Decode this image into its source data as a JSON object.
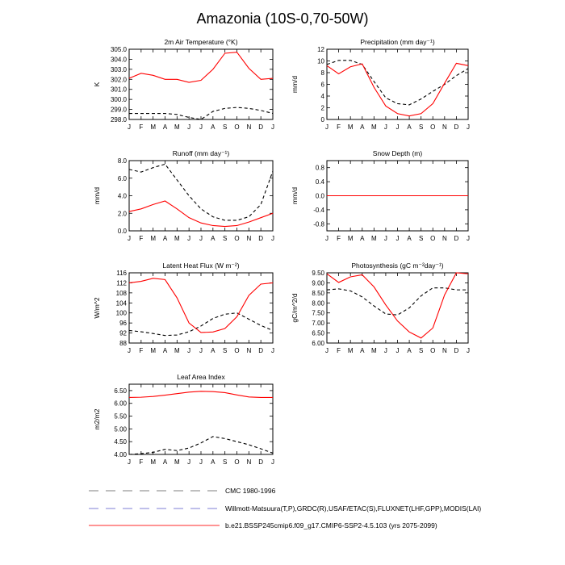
{
  "figure": {
    "title": "Amazonia (10S-0,70-50W)"
  },
  "months": [
    "J",
    "F",
    "M",
    "A",
    "M",
    "J",
    "J",
    "A",
    "S",
    "O",
    "N",
    "D",
    "J"
  ],
  "legend": [
    {
      "label": "CMC 1980-1996",
      "color": "#999999",
      "dash": "long"
    },
    {
      "label": "Willmott-Matsuura(T,P),GRDC(R),USAF/ETAC(S),FLUXNET(LHF,GPP),MODIS(LAI)",
      "color": "#9999dd",
      "dash": "long"
    },
    {
      "label": "b.e21.BSSP245cmip6.f09_g17.CMIP6-SSP2-4.5.103 (yrs 2075-2099)",
      "color": "#ff5555",
      "dash": "solid"
    }
  ],
  "chart_data": [
    {
      "type": "line",
      "title": "2m Air Temperature (°K)",
      "ylabel": "K",
      "ylim": [
        298.0,
        305.0
      ],
      "yticks": [
        "305.0",
        "304.0",
        "303.0",
        "302.0",
        "301.0",
        "300.0",
        "299.0",
        "298.0"
      ],
      "yticks_values": [
        305,
        304,
        303,
        302,
        301,
        300,
        299,
        298
      ],
      "series": [
        {
          "color": "#ff0000",
          "style": "solid",
          "values": [
            302.1,
            302.6,
            302.4,
            302.0,
            302.0,
            301.7,
            301.9,
            303.0,
            304.6,
            304.7,
            303.1,
            302.0,
            302.1
          ]
        },
        {
          "color": "#000000",
          "style": "dashed",
          "values": [
            298.6,
            298.6,
            298.6,
            298.6,
            298.5,
            298.2,
            298.0,
            298.8,
            299.1,
            299.2,
            299.1,
            298.9,
            298.6
          ]
        }
      ]
    },
    {
      "type": "line",
      "title": "Precipitation (mm day⁻¹)",
      "ylabel": "mm/d",
      "ylim": [
        0,
        12
      ],
      "yticks": [
        "12",
        "10",
        "8",
        "6",
        "4",
        "2",
        "0"
      ],
      "yticks_values": [
        12,
        10,
        8,
        6,
        4,
        2,
        0
      ],
      "series": [
        {
          "color": "#ff0000",
          "style": "solid",
          "values": [
            9.2,
            7.8,
            9.0,
            9.5,
            5.5,
            2.3,
            1.0,
            0.6,
            1.0,
            2.7,
            6.2,
            9.6,
            9.2
          ]
        },
        {
          "color": "#000000",
          "style": "dashed",
          "values": [
            9.4,
            10.1,
            10.1,
            9.4,
            6.5,
            3.7,
            2.7,
            2.5,
            3.5,
            4.8,
            6.0,
            7.5,
            8.7
          ]
        }
      ]
    },
    {
      "type": "line",
      "title": "Runoff (mm day⁻¹)",
      "ylabel": "mm/d",
      "ylim": [
        0,
        8
      ],
      "yticks": [
        "8.0",
        "6.0",
        "4.0",
        "2.0",
        "0.0"
      ],
      "yticks_values": [
        8,
        6,
        4,
        2,
        0
      ],
      "series": [
        {
          "color": "#ff0000",
          "style": "solid",
          "values": [
            2.2,
            2.5,
            3.0,
            3.4,
            2.5,
            1.5,
            0.9,
            0.6,
            0.5,
            0.6,
            1.0,
            1.5,
            2.0
          ]
        },
        {
          "color": "#000000",
          "style": "dashed",
          "values": [
            7.0,
            6.7,
            7.2,
            7.6,
            5.8,
            4.0,
            2.5,
            1.6,
            1.2,
            1.2,
            1.6,
            3.0,
            6.8
          ]
        }
      ]
    },
    {
      "type": "line",
      "title": "Snow Depth (m)",
      "ylabel": "mm/d",
      "ylim": [
        -1.0,
        1.0
      ],
      "yticks": [
        "0.8",
        "0.4",
        "0.0",
        "-0.4",
        "-0.8"
      ],
      "yticks_values": [
        0.8,
        0.4,
        0.0,
        -0.4,
        -0.8
      ],
      "series": [
        {
          "color": "#ff0000",
          "style": "solid",
          "values": [
            0,
            0,
            0,
            0,
            0,
            0,
            0,
            0,
            0,
            0,
            0,
            0,
            0
          ]
        },
        {
          "color": "#000000",
          "style": "dashed",
          "values": [
            0,
            0,
            0,
            0,
            0,
            0,
            0,
            0,
            0,
            0,
            0,
            0,
            0
          ]
        }
      ]
    },
    {
      "type": "line",
      "title": "Latent Heat Flux (W m⁻²)",
      "ylabel": "W/m^2",
      "ylim": [
        88,
        116
      ],
      "yticks": [
        "116",
        "112",
        "108",
        "104",
        "100",
        "96",
        "92",
        "88"
      ],
      "yticks_values": [
        116,
        112,
        108,
        104,
        100,
        96,
        92,
        88
      ],
      "series": [
        {
          "color": "#ff0000",
          "style": "solid",
          "values": [
            112.0,
            112.6,
            113.8,
            113.3,
            106.0,
            96.0,
            92.2,
            92.4,
            93.8,
            98.5,
            107.0,
            111.5,
            112.0
          ]
        },
        {
          "color": "#000000",
          "style": "dashed",
          "values": [
            93.0,
            92.5,
            91.8,
            91.0,
            91.2,
            92.5,
            94.8,
            97.8,
            99.5,
            100.0,
            97.5,
            95.0,
            93.0
          ]
        }
      ]
    },
    {
      "type": "line",
      "title": "Photosynthesis (gC m⁻²day⁻¹)",
      "ylabel": "gC/m^2/d",
      "ylim": [
        6.0,
        9.5
      ],
      "yticks": [
        "9.50",
        "9.00",
        "8.50",
        "8.00",
        "7.50",
        "7.00",
        "6.50",
        "6.00"
      ],
      "yticks_values": [
        9.5,
        9.0,
        8.5,
        8.0,
        7.5,
        7.0,
        6.5,
        6.0
      ],
      "series": [
        {
          "color": "#ff0000",
          "style": "solid",
          "values": [
            9.45,
            9.02,
            9.3,
            9.4,
            8.8,
            7.9,
            7.1,
            6.55,
            6.25,
            6.75,
            8.4,
            9.5,
            9.45
          ]
        },
        {
          "color": "#000000",
          "style": "dashed",
          "values": [
            8.65,
            8.7,
            8.6,
            8.3,
            7.85,
            7.45,
            7.4,
            7.75,
            8.35,
            8.75,
            8.75,
            8.65,
            8.65
          ]
        }
      ]
    },
    {
      "type": "line",
      "title": "Leaf Area Index",
      "ylabel": "m2/m2",
      "ylim": [
        4.0,
        6.75
      ],
      "yticks": [
        "6.50",
        "6.00",
        "5.50",
        "5.00",
        "4.50",
        "4.00"
      ],
      "yticks_values": [
        6.5,
        6.0,
        5.5,
        5.0,
        4.5,
        4.0
      ],
      "series": [
        {
          "color": "#ff0000",
          "style": "solid",
          "values": [
            6.23,
            6.24,
            6.27,
            6.32,
            6.38,
            6.44,
            6.47,
            6.46,
            6.42,
            6.33,
            6.25,
            6.23,
            6.23
          ]
        },
        {
          "color": "#000000",
          "style": "dashed",
          "values": [
            4.0,
            4.03,
            4.08,
            4.2,
            4.15,
            4.25,
            4.45,
            4.7,
            4.62,
            4.5,
            4.38,
            4.22,
            4.05
          ]
        }
      ]
    }
  ]
}
